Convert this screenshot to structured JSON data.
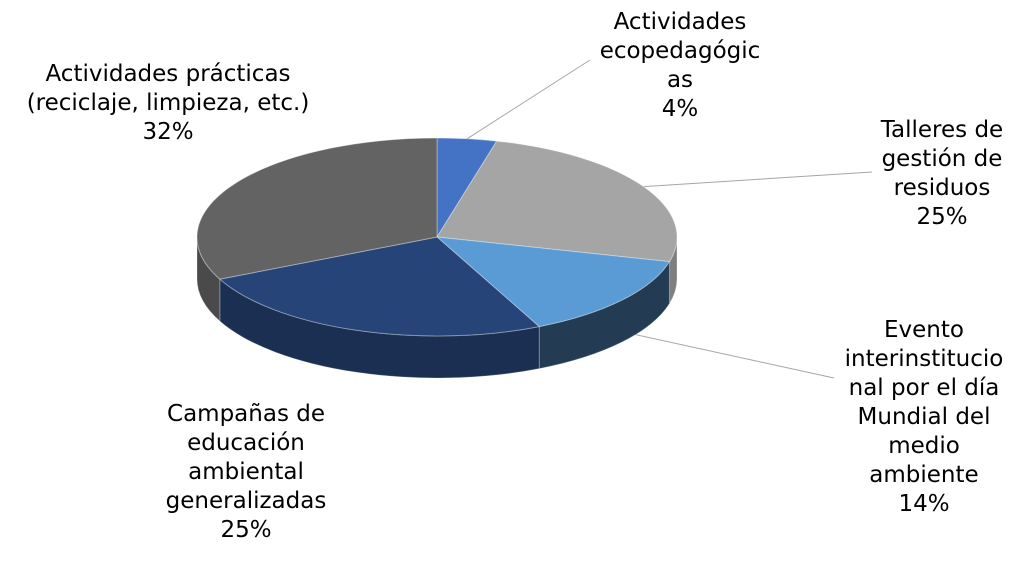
{
  "chart_data": {
    "type": "pie",
    "title": "",
    "style": "3d",
    "slices": [
      {
        "label_lines": [
          "Actividades",
          "ecopedagógic",
          "as"
        ],
        "value": 4,
        "pct_text": "4%",
        "color": "#4472C4",
        "side_color": "#2F5597"
      },
      {
        "label_lines": [
          "Talleres de",
          "gestión de",
          "residuos"
        ],
        "value": 25,
        "pct_text": "25%",
        "color": "#A5A5A5",
        "side_color": "#7F7F7F"
      },
      {
        "label_lines": [
          "Evento",
          "interinstitucio",
          "nal por el día",
          "Mundial del",
          "medio",
          "ambiente"
        ],
        "value": 14,
        "pct_text": "14%",
        "color": "#5B9BD5",
        "side_color": "#233C54"
      },
      {
        "label_lines": [
          "Campañas de",
          "educación",
          "ambiental",
          "generalizadas"
        ],
        "value": 25,
        "pct_text": "25%",
        "color": "#264478",
        "side_color": "#1A2F52"
      },
      {
        "label_lines": [
          "Actividades prácticas",
          "(reciclaje, limpieza, etc.)"
        ],
        "value": 32,
        "pct_text": "32%",
        "color": "#636363",
        "side_color": "#4A4A4A"
      }
    ]
  }
}
